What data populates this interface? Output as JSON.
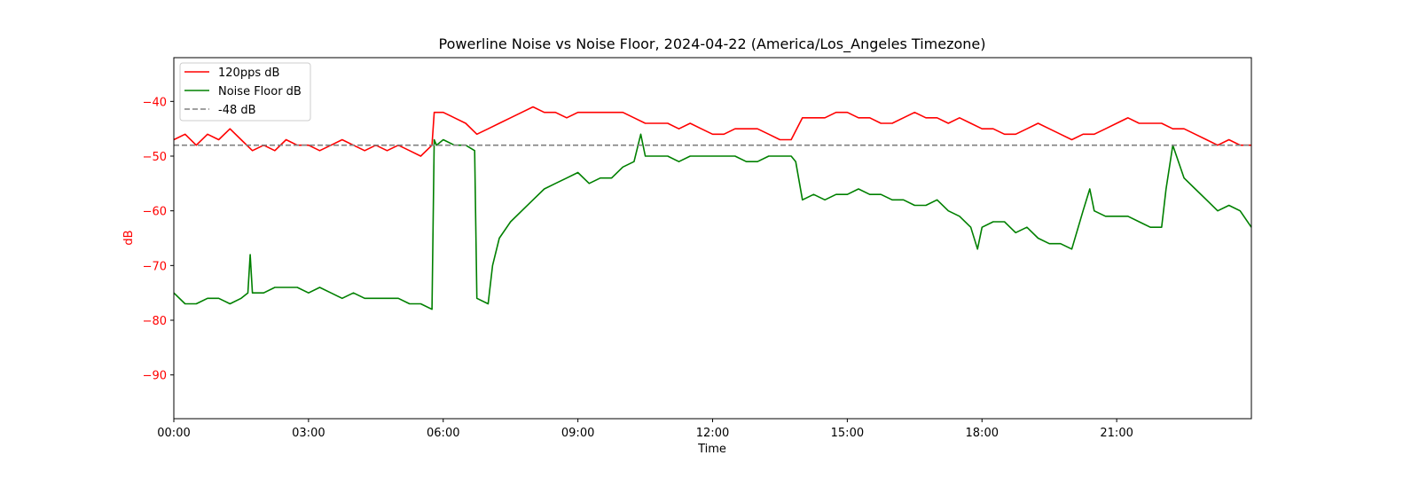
{
  "chart_data": {
    "type": "line",
    "title": "Powerline Noise vs Noise Floor, 2024-04-22 (America/Los_Angeles Timezone)",
    "xlabel": "Time",
    "ylabel": "dB",
    "ylabel_color": "#ff0000",
    "ytick_color": "#ff0000",
    "x_unit": "hours",
    "xlim": [
      0,
      24
    ],
    "ylim": [
      -98,
      -32
    ],
    "x_ticks": [
      {
        "value": 0,
        "label": "00:00"
      },
      {
        "value": 3,
        "label": "03:00"
      },
      {
        "value": 6,
        "label": "06:00"
      },
      {
        "value": 9,
        "label": "09:00"
      },
      {
        "value": 12,
        "label": "12:00"
      },
      {
        "value": 15,
        "label": "15:00"
      },
      {
        "value": 18,
        "label": "18:00"
      },
      {
        "value": 21,
        "label": "21:00"
      }
    ],
    "y_ticks": [
      {
        "value": -40,
        "label": "−40"
      },
      {
        "value": -50,
        "label": "−50"
      },
      {
        "value": -60,
        "label": "−60"
      },
      {
        "value": -70,
        "label": "−70"
      },
      {
        "value": -80,
        "label": "−80"
      },
      {
        "value": -90,
        "label": "−90"
      }
    ],
    "grid": false,
    "legend_position": "upper-left",
    "series": [
      {
        "name": "120pps dB",
        "color": "#ff0000",
        "style": "solid",
        "x": [
          0,
          0.25,
          0.5,
          0.75,
          1,
          1.25,
          1.5,
          1.75,
          2,
          2.25,
          2.5,
          2.75,
          3,
          3.25,
          3.5,
          3.75,
          4,
          4.25,
          4.5,
          4.75,
          5,
          5.25,
          5.5,
          5.75,
          5.8,
          6,
          6.25,
          6.5,
          6.75,
          7,
          7.25,
          7.5,
          7.75,
          8,
          8.25,
          8.5,
          8.75,
          9,
          9.25,
          9.5,
          9.75,
          10,
          10.25,
          10.5,
          10.75,
          11,
          11.25,
          11.5,
          11.75,
          12,
          12.25,
          12.5,
          12.75,
          13,
          13.25,
          13.5,
          13.75,
          14,
          14.25,
          14.5,
          14.75,
          15,
          15.25,
          15.5,
          15.75,
          16,
          16.25,
          16.5,
          16.75,
          17,
          17.25,
          17.5,
          17.75,
          18,
          18.25,
          18.5,
          18.75,
          19,
          19.25,
          19.5,
          19.75,
          20,
          20.25,
          20.5,
          20.75,
          21,
          21.25,
          21.5,
          21.75,
          22,
          22.25,
          22.5,
          22.75,
          23,
          23.25,
          23.5,
          23.75,
          24
        ],
        "y": [
          -47,
          -46,
          -48,
          -46,
          -47,
          -45,
          -47,
          -49,
          -48,
          -49,
          -47,
          -48,
          -48,
          -49,
          -48,
          -47,
          -48,
          -49,
          -48,
          -49,
          -48,
          -49,
          -50,
          -48,
          -42,
          -42,
          -43,
          -44,
          -46,
          -45,
          -44,
          -43,
          -42,
          -41,
          -42,
          -42,
          -43,
          -42,
          -42,
          -42,
          -42,
          -42,
          -43,
          -44,
          -44,
          -44,
          -45,
          -44,
          -45,
          -46,
          -46,
          -45,
          -45,
          -45,
          -46,
          -47,
          -47,
          -43,
          -43,
          -43,
          -42,
          -42,
          -43,
          -43,
          -44,
          -44,
          -43,
          -42,
          -43,
          -43,
          -44,
          -43,
          -44,
          -45,
          -45,
          -46,
          -46,
          -45,
          -44,
          -45,
          -46,
          -47,
          -46,
          -46,
          -45,
          -44,
          -43,
          -44,
          -44,
          -44,
          -45,
          -45,
          -46,
          -47,
          -48,
          -47,
          -48,
          -48
        ]
      },
      {
        "name": "Noise Floor dB",
        "color": "#008000",
        "style": "solid",
        "x": [
          0,
          0.25,
          0.5,
          0.75,
          1,
          1.25,
          1.5,
          1.65,
          1.7,
          1.75,
          2,
          2.25,
          2.5,
          2.75,
          3,
          3.25,
          3.5,
          3.75,
          4,
          4.25,
          4.5,
          4.75,
          5,
          5.25,
          5.5,
          5.75,
          5.8,
          5.85,
          6,
          6.25,
          6.5,
          6.7,
          6.75,
          7,
          7.1,
          7.25,
          7.5,
          7.75,
          8,
          8.25,
          8.5,
          8.75,
          9,
          9.25,
          9.5,
          9.75,
          10,
          10.25,
          10.4,
          10.5,
          10.75,
          11,
          11.25,
          11.5,
          11.75,
          12,
          12.25,
          12.5,
          12.75,
          13,
          13.25,
          13.5,
          13.75,
          13.85,
          14,
          14.25,
          14.5,
          14.75,
          15,
          15.25,
          15.5,
          15.75,
          16,
          16.25,
          16.5,
          16.75,
          17,
          17.25,
          17.5,
          17.75,
          17.9,
          18,
          18.25,
          18.5,
          18.75,
          19,
          19.25,
          19.5,
          19.75,
          20,
          20.25,
          20.4,
          20.5,
          20.75,
          21,
          21.25,
          21.5,
          21.75,
          22,
          22.1,
          22.25,
          22.5,
          22.75,
          23,
          23.25,
          23.5,
          23.75,
          24
        ],
        "y": [
          -75,
          -77,
          -77,
          -76,
          -76,
          -77,
          -76,
          -75,
          -68,
          -75,
          -75,
          -74,
          -74,
          -74,
          -75,
          -74,
          -75,
          -76,
          -75,
          -76,
          -76,
          -76,
          -76,
          -77,
          -77,
          -78,
          -47,
          -48,
          -47,
          -48,
          -48,
          -49,
          -76,
          -77,
          -70,
          -65,
          -62,
          -60,
          -58,
          -56,
          -55,
          -54,
          -53,
          -55,
          -54,
          -54,
          -52,
          -51,
          -46,
          -50,
          -50,
          -50,
          -51,
          -50,
          -50,
          -50,
          -50,
          -50,
          -51,
          -51,
          -50,
          -50,
          -50,
          -51,
          -58,
          -57,
          -58,
          -57,
          -57,
          -56,
          -57,
          -57,
          -58,
          -58,
          -59,
          -59,
          -58,
          -60,
          -61,
          -63,
          -67,
          -63,
          -62,
          -62,
          -64,
          -63,
          -65,
          -66,
          -66,
          -67,
          -60,
          -56,
          -60,
          -61,
          -61,
          -61,
          -62,
          -63,
          -63,
          -56,
          -48,
          -54,
          -56,
          -58,
          -60,
          -59,
          -60,
          -63
        ]
      },
      {
        "name": "-48 dB",
        "color": "#808080",
        "style": "dashed",
        "x": [
          0,
          24
        ],
        "y": [
          -48,
          -48
        ]
      }
    ]
  }
}
